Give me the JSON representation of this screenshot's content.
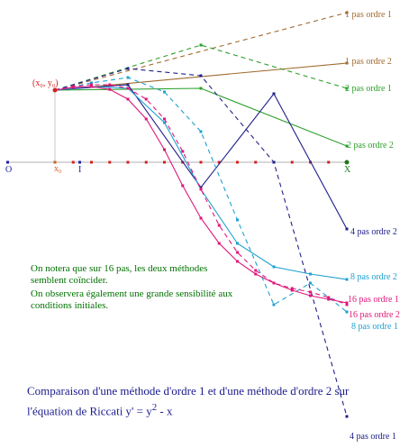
{
  "chart_data": {
    "type": "line",
    "title": "",
    "xlabel": "",
    "ylabel": "",
    "axis": {
      "origin_label": "O",
      "x0_label": "x₀",
      "unit_label": "I",
      "end_label": "X",
      "start_point_label": "(x₀, y₀)",
      "x_range": [
        -1.3,
        8
      ],
      "y_range": [
        -7.5,
        4.2
      ]
    },
    "series": [
      {
        "name": "1 pas ordre 1",
        "color": "#a06a30",
        "dashed": true,
        "x": [
          0,
          8
        ],
        "y": [
          2.0,
          4.15
        ]
      },
      {
        "name": "1 pas ordre 2",
        "color": "#a06a30",
        "dashed": false,
        "x": [
          0,
          8
        ],
        "y": [
          2.0,
          2.75
        ]
      },
      {
        "name": "2 pas ordre 1",
        "color": "#2ca02c",
        "dashed": true,
        "x": [
          0,
          4,
          8
        ],
        "y": [
          2.0,
          3.25,
          2.05
        ]
      },
      {
        "name": "2 pas ordre 2",
        "color": "#2ca02c",
        "dashed": false,
        "x": [
          0,
          4,
          8
        ],
        "y": [
          2.0,
          2.05,
          0.45
        ]
      },
      {
        "name": "4 pas ordre 1",
        "color": "#20208a",
        "dashed": true,
        "x": [
          0,
          2,
          4,
          6,
          8
        ],
        "y": [
          2.0,
          2.6,
          2.4,
          0.0,
          -7.05
        ]
      },
      {
        "name": "4 pas ordre 2",
        "color": "#20208a",
        "dashed": false,
        "x": [
          0,
          2,
          4,
          6,
          8
        ],
        "y": [
          2.0,
          2.15,
          -0.7,
          1.9,
          -1.85
        ]
      },
      {
        "name": "8 pas ordre 1",
        "color": "#1fa0d0",
        "dashed": true,
        "x": [
          0,
          1,
          2,
          3,
          4,
          5,
          6,
          7,
          8
        ],
        "y": [
          2.0,
          2.2,
          2.35,
          1.95,
          0.85,
          -1.6,
          -3.95,
          -3.35,
          -4.15
        ]
      },
      {
        "name": "8 pas ordre 2",
        "color": "#1fa0d0",
        "dashed": false,
        "x": [
          0,
          1,
          2,
          3,
          4,
          5,
          6,
          7,
          8
        ],
        "y": [
          2.0,
          2.1,
          2.05,
          1.1,
          -0.75,
          -2.25,
          -2.9,
          -3.1,
          -3.25
        ]
      },
      {
        "name": "16 pas ordre 1",
        "color": "#e0167a",
        "dashed": true,
        "x": [
          0,
          0.5,
          1,
          1.5,
          2,
          2.5,
          3,
          3.5,
          4,
          4.5,
          5,
          5.5,
          6,
          6.5,
          7,
          7.5,
          8
        ],
        "y": [
          2.0,
          2.1,
          2.15,
          2.15,
          2.05,
          1.75,
          1.2,
          0.3,
          -0.75,
          -1.75,
          -2.5,
          -3.0,
          -3.35,
          -3.5,
          -3.6,
          -3.75,
          -3.95
        ]
      },
      {
        "name": "16 pas ordre 2",
        "color": "#e0167a",
        "dashed": false,
        "x": [
          0,
          0.5,
          1,
          1.5,
          2,
          2.5,
          3,
          3.5,
          4,
          4.5,
          5,
          5.5,
          6,
          6.5,
          7,
          7.5,
          8
        ],
        "y": [
          2.0,
          2.08,
          2.1,
          2.02,
          1.75,
          1.2,
          0.35,
          -0.65,
          -1.55,
          -2.25,
          -2.75,
          -3.1,
          -3.35,
          -3.55,
          -3.7,
          -3.8,
          -3.9
        ]
      }
    ]
  },
  "notes": {
    "line1": "On notera que sur 16 pas, les deux méthodes semblent coïncider.",
    "line2": "On observera également une grande sensibilité aux conditions initiales."
  },
  "caption": {
    "text": "Comparaison d'une méthode d'ordre 1 et d'une méthode d'ordre 2 sur l'équation de Riccati y' = y",
    "sup": "2",
    "tail": " - x"
  }
}
